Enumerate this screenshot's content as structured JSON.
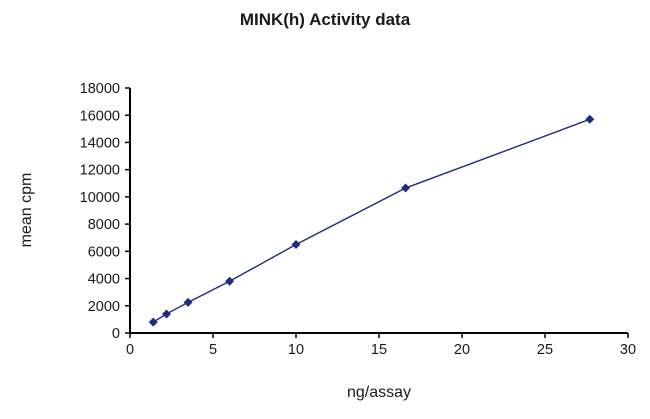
{
  "chart_data": {
    "type": "line",
    "title": "MINK(h) Activity data",
    "xlabel": "ng/assay",
    "ylabel": "mean cpm",
    "x": [
      1.4,
      2.2,
      3.5,
      6,
      10,
      16.6,
      27.7
    ],
    "y": [
      800,
      1400,
      2250,
      3800,
      6500,
      10650,
      15700
    ],
    "xlim": [
      0,
      30
    ],
    "ylim": [
      0,
      18000
    ],
    "xticks": [
      0,
      5,
      10,
      15,
      20,
      25,
      30
    ],
    "yticks": [
      0,
      2000,
      4000,
      6000,
      8000,
      10000,
      12000,
      14000,
      16000,
      18000
    ],
    "line_color": "#1f2c80",
    "axis_color": "#000000",
    "marker": "diamond",
    "grid": false,
    "legend_position": "none"
  }
}
